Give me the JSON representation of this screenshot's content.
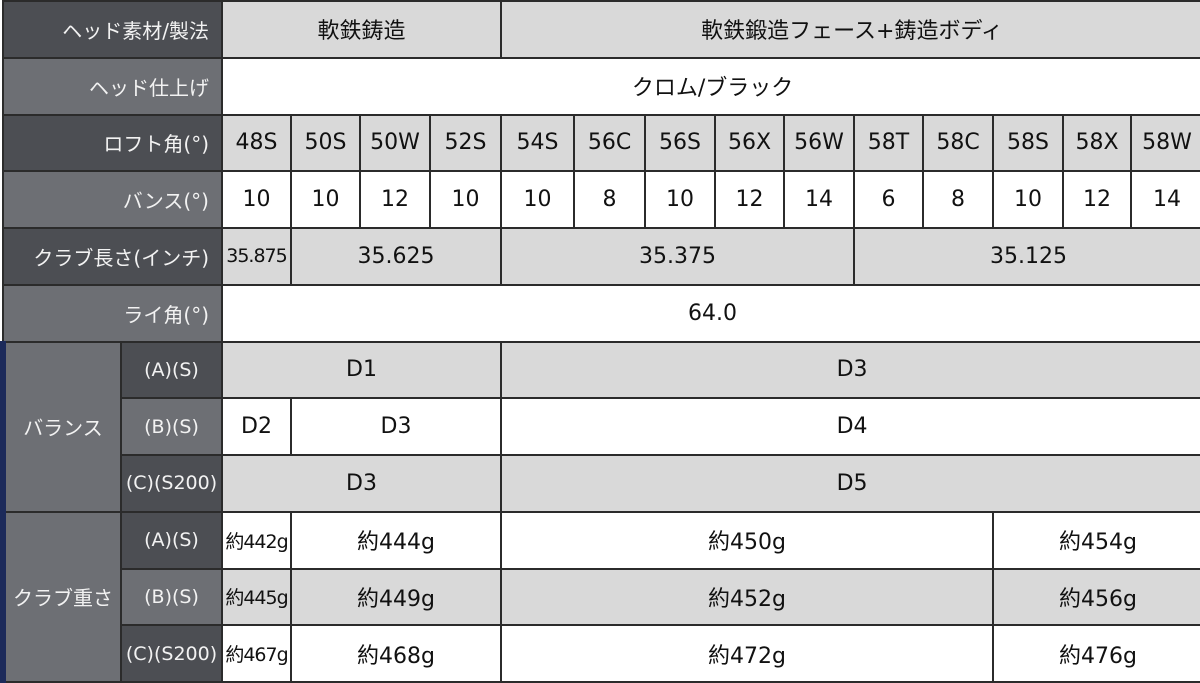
{
  "columns": [
    "48S",
    "50S",
    "50W",
    "52S",
    "54S",
    "56C",
    "56S",
    "56X",
    "56W",
    "58T",
    "58C",
    "58S",
    "58X",
    "58W"
  ],
  "rows": {
    "material": {
      "label": "ヘッド素材/製法",
      "values": [
        "軟鉄鋳造",
        "軟鉄鍛造フェース+鋳造ボディ"
      ]
    },
    "finish": {
      "label": "ヘッド仕上げ",
      "value": "クロム/ブラック"
    },
    "loft": {
      "label": "ロフト角(°)"
    },
    "bounce": {
      "label": "バンス(°)",
      "values": [
        "10",
        "10",
        "12",
        "10",
        "10",
        "8",
        "10",
        "12",
        "14",
        "6",
        "8",
        "10",
        "12",
        "14"
      ]
    },
    "length": {
      "label": "クラブ長さ(インチ)",
      "values": [
        "35.875",
        "35.625",
        "35.375",
        "35.125"
      ]
    },
    "lie": {
      "label": "ライ角(°)",
      "value": "64.0"
    },
    "balance": {
      "label": "バランス",
      "a": {
        "label": "(A)(S)",
        "values": [
          "D1",
          "D3"
        ]
      },
      "b": {
        "label": "(B)(S)",
        "values": [
          "D2",
          "D3",
          "D4"
        ]
      },
      "c": {
        "label": "(C)(S200)",
        "values": [
          "D3",
          "D5"
        ]
      }
    },
    "weight": {
      "label": "クラブ重さ",
      "a": {
        "label": "(A)(S)",
        "values": [
          "約442g",
          "約444g",
          "約450g",
          "約454g"
        ]
      },
      "b": {
        "label": "(B)(S)",
        "values": [
          "約445g",
          "約449g",
          "約452g",
          "約456g"
        ]
      },
      "c": {
        "label": "(C)(S200)",
        "values": [
          "約467g",
          "約468g",
          "約472g",
          "約476g"
        ]
      }
    }
  },
  "colors": {
    "label_dark": "#4c4e53",
    "label_light": "#6d6f74",
    "cell_gray": "#d9d9d9",
    "accent_navy": "#1c2a5a"
  }
}
